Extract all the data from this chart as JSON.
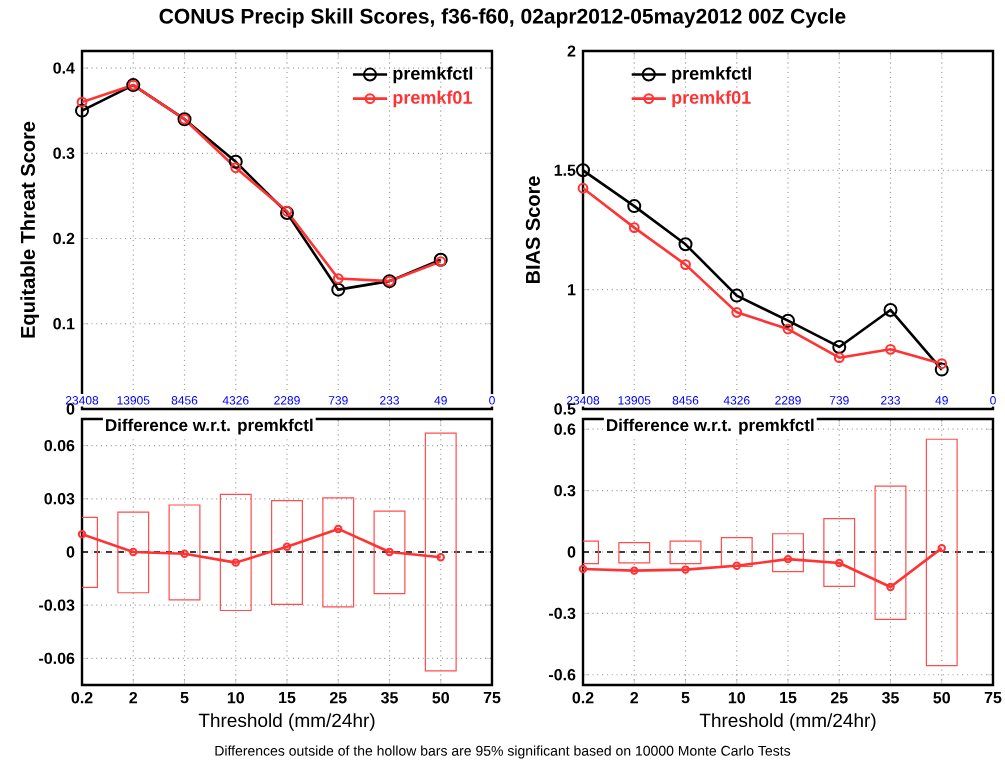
{
  "chart_data": [
    {
      "type": "line",
      "title": "CONUS Precip Skill Scores, f36-f60, 02apr2012-05may2012 00Z Cycle",
      "ylabel": "Equitable Threat Score",
      "categories": [
        "23408",
        "13905",
        "8456",
        "4326",
        "2289",
        "739",
        "233",
        "49",
        "0"
      ],
      "series": [
        {
          "name": "premkfctl",
          "color": "#000000",
          "values": [
            0.35,
            0.38,
            0.34,
            0.29,
            0.23,
            0.14,
            0.15,
            0.175,
            null
          ]
        },
        {
          "name": "premkf01",
          "color": "#ff3333",
          "values": [
            0.36,
            0.38,
            0.34,
            0.283,
            0.232,
            0.153,
            0.15,
            0.173,
            null
          ]
        }
      ],
      "ylim": [
        0,
        0.42
      ],
      "yticks": [
        0,
        0.1,
        0.2,
        0.3,
        0.4
      ],
      "grid": true,
      "legend": "top right",
      "marker": "circle",
      "annotations": [
        "Differences outside of the hollow bars are 95% significant based on 10000 Monte Carlo Tests"
      ]
    },
    {
      "type": "line",
      "ylabel": "BIAS Score",
      "categories": [
        "23408",
        "13905",
        "8456",
        "4326",
        "2289",
        "739",
        "233",
        "49",
        "0"
      ],
      "series": [
        {
          "name": "premkfctl",
          "color": "#000000",
          "values": [
            1.5,
            1.35,
            1.19,
            0.975,
            0.87,
            0.76,
            0.915,
            0.665,
            null
          ]
        },
        {
          "name": "premkf01",
          "color": "#ff3333",
          "values": [
            1.425,
            1.26,
            1.105,
            0.905,
            0.835,
            0.715,
            0.75,
            0.69,
            null
          ]
        }
      ],
      "ylim": [
        0.5,
        2
      ],
      "yticks": [
        0.5,
        1,
        1.5,
        2
      ],
      "grid": true,
      "legend": "top left",
      "marker": "circle"
    },
    {
      "type": "line",
      "title": "Difference w.r.t. premkfctl",
      "xlabel": "Threshold (mm/24hr)",
      "categories": [
        "0.2",
        "2",
        "5",
        "10",
        "15",
        "25",
        "35",
        "50",
        "75"
      ],
      "series": [
        {
          "type": "bar",
          "color": "#ff4d4d",
          "base": [
            -0.02,
            -0.023,
            -0.027,
            -0.033,
            -0.0295,
            -0.031,
            -0.0235,
            -0.067,
            null
          ],
          "values": [
            0.0395,
            0.0455,
            0.0535,
            0.0655,
            0.0585,
            0.0615,
            0.0465,
            0.134,
            null
          ]
        },
        {
          "color": "#ff3333",
          "values": [
            0.01,
            0,
            -0.001,
            -0.006,
            0.003,
            0.013,
            0,
            -0.003,
            null
          ]
        }
      ],
      "ylim": [
        -0.075,
        0.075
      ],
      "yticks": [
        -0.06,
        -0.03,
        0,
        0.03,
        0.06
      ],
      "grid": true,
      "marker": "circle",
      "ref_lines": [
        {
          "axis": "y",
          "value": 0,
          "color": "#000000",
          "line_style": "dashed"
        }
      ]
    },
    {
      "type": "line",
      "title": "Difference w.r.t. premkfctl",
      "xlabel": "Threshold (mm/24hr)",
      "categories": [
        "0.2",
        "2",
        "5",
        "10",
        "15",
        "25",
        "35",
        "50",
        "75"
      ],
      "series": [
        {
          "type": "bar",
          "color": "#ff4d4d",
          "base": [
            -0.057,
            -0.053,
            -0.057,
            -0.07,
            -0.096,
            -0.168,
            -0.329,
            -0.555,
            null
          ],
          "values": [
            0.11,
            0.099,
            0.11,
            0.14,
            0.185,
            0.331,
            0.651,
            1.106,
            null
          ]
        },
        {
          "color": "#ff3333",
          "values": [
            -0.083,
            -0.091,
            -0.086,
            -0.067,
            -0.035,
            -0.054,
            -0.171,
            0.019,
            null
          ]
        }
      ],
      "ylim": [
        -0.65,
        0.65
      ],
      "yticks": [
        -0.6,
        -0.3,
        0,
        0.3,
        0.6
      ],
      "grid": true,
      "marker": "circle",
      "ref_lines": [
        {
          "axis": "y",
          "value": 0,
          "color": "#000000",
          "line_style": "dashed"
        }
      ]
    }
  ]
}
